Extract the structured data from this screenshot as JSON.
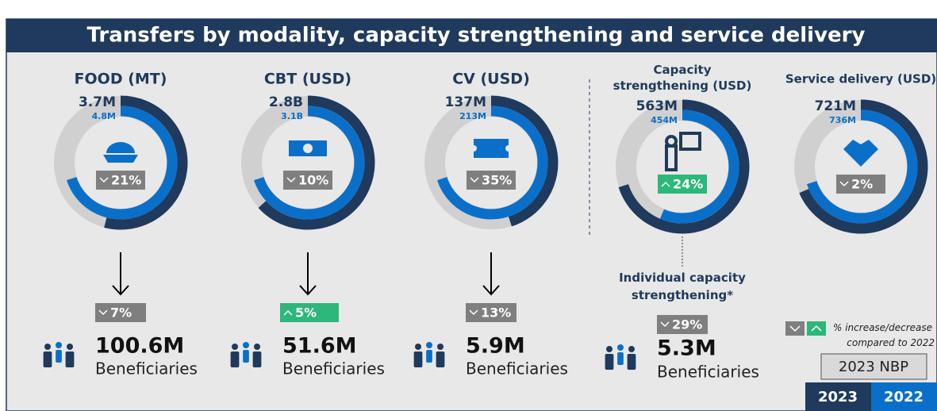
{
  "title": "Transfers by modality, capacity strengthening and service delivery",
  "donuts": [
    {
      "name": "FOOD (MT)",
      "values": [
        3700000,
        4800000
      ],
      "value_labels": [
        "3.7M",
        "4.8M"
      ],
      "change": "21%",
      "direction": "down"
    },
    {
      "name": "CBT (USD)",
      "values": [
        2800000000,
        3100000000
      ],
      "value_labels": [
        "2.8B",
        "3.1B"
      ],
      "change": "10%",
      "direction": "down"
    },
    {
      "name": "CV (USD)",
      "values": [
        137000000,
        213000000
      ],
      "value_labels": [
        "137M",
        "213M"
      ],
      "change": "35%",
      "direction": "down"
    },
    {
      "name": "Capacity strengthening (USD)",
      "values": [
        563000000,
        454000000
      ],
      "value_labels": [
        "563M",
        "454M"
      ],
      "change": "24%",
      "direction": "up"
    },
    {
      "name": "Service delivery (USD)",
      "values": [
        721000000,
        736000000
      ],
      "value_labels": [
        "721M",
        "736M"
      ],
      "change": "2%",
      "direction": "down"
    }
  ],
  "individual_capacity_title": "Individual capacity strengthening*",
  "beneficiaries": [
    {
      "value_label": "100.6M",
      "label": "Beneficiaries",
      "change": "7%",
      "direction": "down"
    },
    {
      "value_label": "51.6M",
      "label": "Beneficiaries",
      "change": "5%",
      "direction": "up"
    },
    {
      "value_label": "5.9M",
      "label": "Beneficiaries",
      "change": "13%",
      "direction": "down"
    },
    {
      "value_label": "5.3M",
      "label": "Beneficiaries",
      "change": "29%",
      "direction": "down"
    }
  ],
  "legend": {
    "note": "% increase/decrease compared to 2022",
    "box": "2023 NBP",
    "years": [
      "2023",
      "2022"
    ]
  }
}
